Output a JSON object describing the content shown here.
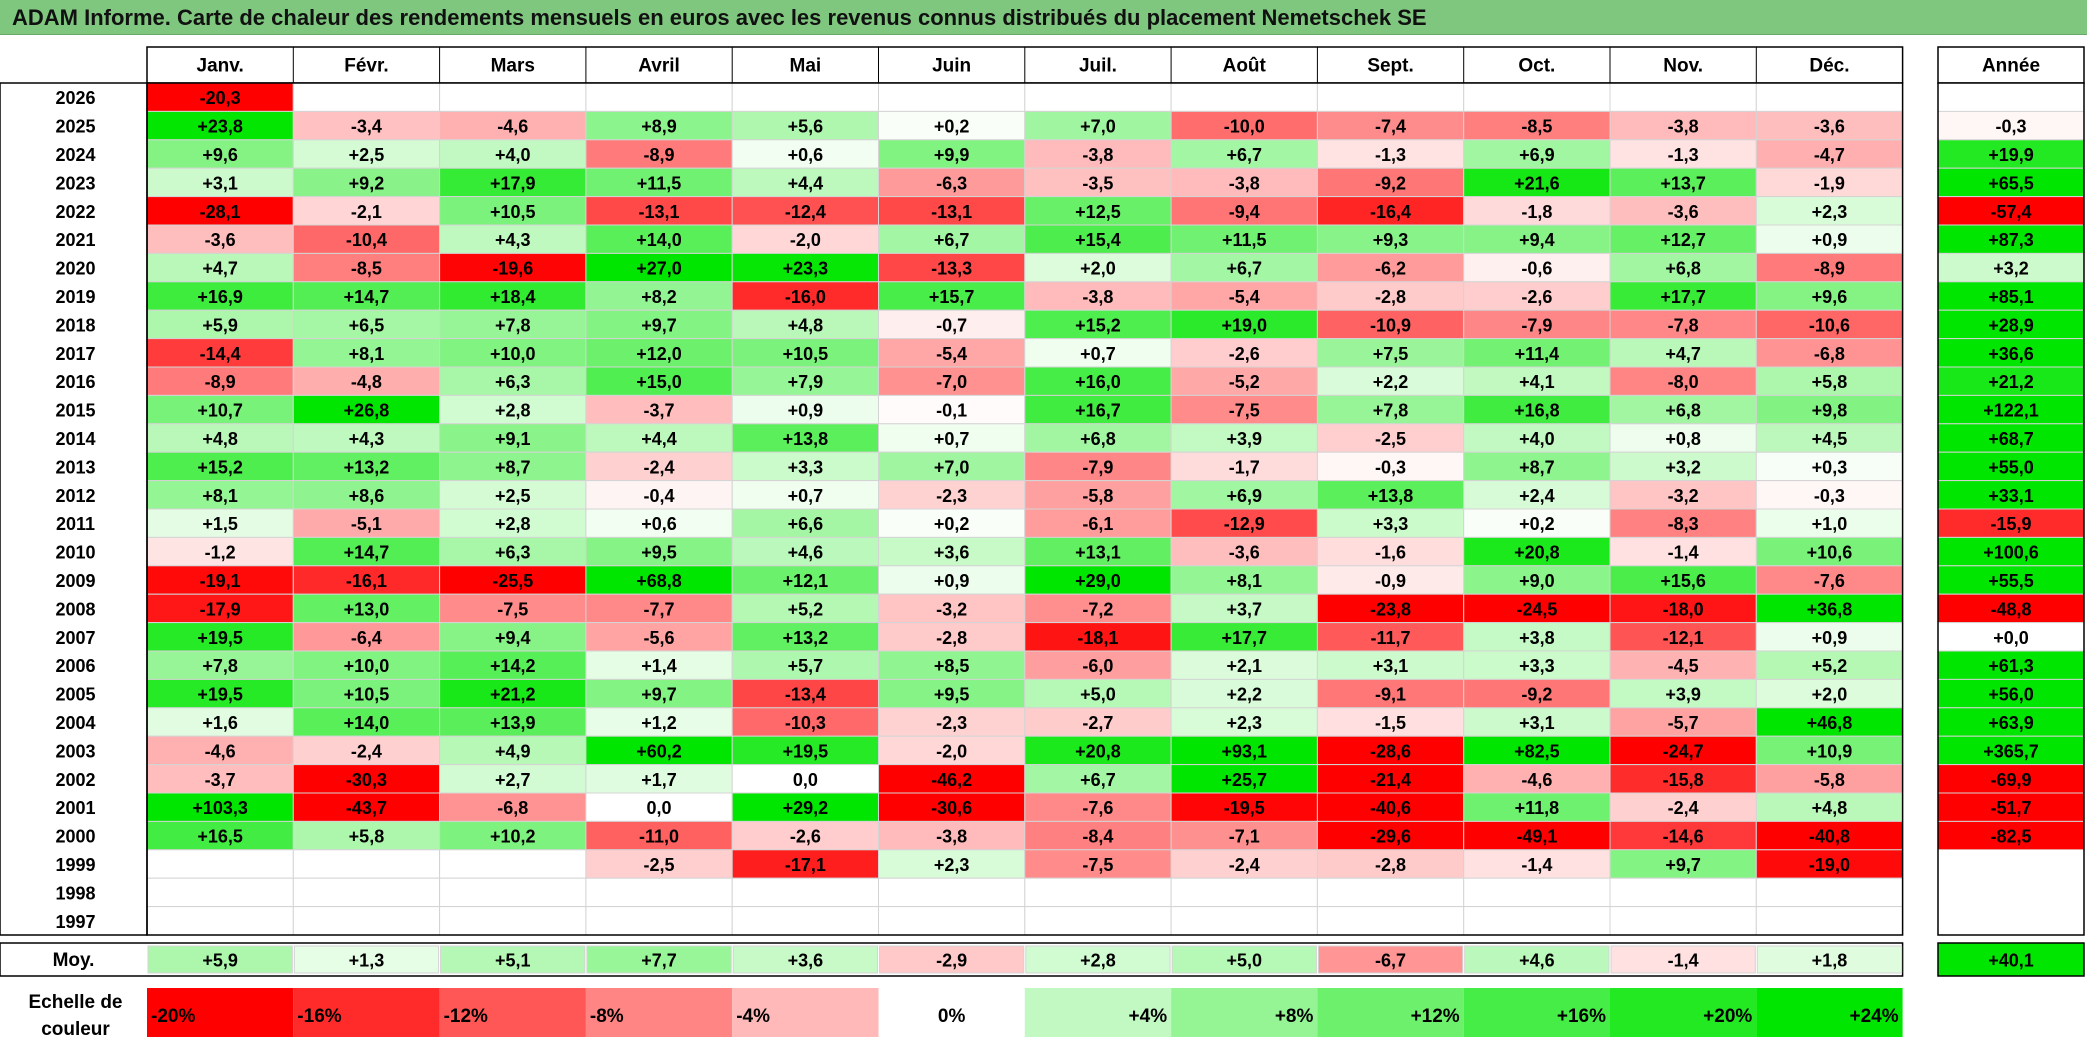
{
  "title": "ADAM Informe. Carte de chaleur des rendements mensuels en euros avec les revenus connus distribués du placement Nemetschek SE",
  "chart_data": {
    "type": "heatmap",
    "months": [
      "Janv.",
      "Févr.",
      "Mars",
      "Avril",
      "Mai",
      "Juin",
      "Juil.",
      "Août",
      "Sept.",
      "Oct.",
      "Nov.",
      "Déc."
    ],
    "year_header": "Année",
    "rows": [
      {
        "year": "2026",
        "months": [
          "-20,3",
          "",
          "",
          "",
          "",
          "",
          "",
          "",
          "",
          "",
          "",
          ""
        ],
        "annual": ""
      },
      {
        "year": "2025",
        "months": [
          "+23,8",
          "-3,4",
          "-4,6",
          "+8,9",
          "+5,6",
          "+0,2",
          "+7,0",
          "-10,0",
          "-7,4",
          "-8,5",
          "-3,8",
          "-3,6"
        ],
        "annual": "-0,3"
      },
      {
        "year": "2024",
        "months": [
          "+9,6",
          "+2,5",
          "+4,0",
          "-8,9",
          "+0,6",
          "+9,9",
          "-3,8",
          "+6,7",
          "-1,3",
          "+6,9",
          "-1,3",
          "-4,7"
        ],
        "annual": "+19,9"
      },
      {
        "year": "2023",
        "months": [
          "+3,1",
          "+9,2",
          "+17,9",
          "+11,5",
          "+4,4",
          "-6,3",
          "-3,5",
          "-3,8",
          "-9,2",
          "+21,6",
          "+13,7",
          "-1,9"
        ],
        "annual": "+65,5"
      },
      {
        "year": "2022",
        "months": [
          "-28,1",
          "-2,1",
          "+10,5",
          "-13,1",
          "-12,4",
          "-13,1",
          "+12,5",
          "-9,4",
          "-16,4",
          "-1,8",
          "-3,6",
          "+2,3"
        ],
        "annual": "-57,4"
      },
      {
        "year": "2021",
        "months": [
          "-3,6",
          "-10,4",
          "+4,3",
          "+14,0",
          "-2,0",
          "+6,7",
          "+15,4",
          "+11,5",
          "+9,3",
          "+9,4",
          "+12,7",
          "+0,9"
        ],
        "annual": "+87,3"
      },
      {
        "year": "2020",
        "months": [
          "+4,7",
          "-8,5",
          "-19,6",
          "+27,0",
          "+23,3",
          "-13,3",
          "+2,0",
          "+6,7",
          "-6,2",
          "-0,6",
          "+6,8",
          "-8,9"
        ],
        "annual": "+3,2"
      },
      {
        "year": "2019",
        "months": [
          "+16,9",
          "+14,7",
          "+18,4",
          "+8,2",
          "-16,0",
          "+15,7",
          "-3,8",
          "-5,4",
          "-2,8",
          "-2,6",
          "+17,7",
          "+9,6"
        ],
        "annual": "+85,1"
      },
      {
        "year": "2018",
        "months": [
          "+5,9",
          "+6,5",
          "+7,8",
          "+9,7",
          "+4,8",
          "-0,7",
          "+15,2",
          "+19,0",
          "-10,9",
          "-7,9",
          "-7,8",
          "-10,6"
        ],
        "annual": "+28,9"
      },
      {
        "year": "2017",
        "months": [
          "-14,4",
          "+8,1",
          "+10,0",
          "+12,0",
          "+10,5",
          "-5,4",
          "+0,7",
          "-2,6",
          "+7,5",
          "+11,4",
          "+4,7",
          "-6,8"
        ],
        "annual": "+36,6"
      },
      {
        "year": "2016",
        "months": [
          "-8,9",
          "-4,8",
          "+6,3",
          "+15,0",
          "+7,9",
          "-7,0",
          "+16,0",
          "-5,2",
          "+2,2",
          "+4,1",
          "-8,0",
          "+5,8"
        ],
        "annual": "+21,2"
      },
      {
        "year": "2015",
        "months": [
          "+10,7",
          "+26,8",
          "+2,8",
          "-3,7",
          "+0,9",
          "-0,1",
          "+16,7",
          "-7,5",
          "+7,8",
          "+16,8",
          "+6,8",
          "+9,8"
        ],
        "annual": "+122,1"
      },
      {
        "year": "2014",
        "months": [
          "+4,8",
          "+4,3",
          "+9,1",
          "+4,4",
          "+13,8",
          "+0,7",
          "+6,8",
          "+3,9",
          "-2,5",
          "+4,0",
          "+0,8",
          "+4,5"
        ],
        "annual": "+68,7"
      },
      {
        "year": "2013",
        "months": [
          "+15,2",
          "+13,2",
          "+8,7",
          "-2,4",
          "+3,3",
          "+7,0",
          "-7,9",
          "-1,7",
          "-0,3",
          "+8,7",
          "+3,2",
          "+0,3"
        ],
        "annual": "+55,0"
      },
      {
        "year": "2012",
        "months": [
          "+8,1",
          "+8,6",
          "+2,5",
          "-0,4",
          "+0,7",
          "-2,3",
          "-5,8",
          "+6,9",
          "+13,8",
          "+2,4",
          "-3,2",
          "-0,3"
        ],
        "annual": "+33,1"
      },
      {
        "year": "2011",
        "months": [
          "+1,5",
          "-5,1",
          "+2,8",
          "+0,6",
          "+6,6",
          "+0,2",
          "-6,1",
          "-12,9",
          "+3,3",
          "+0,2",
          "-8,3",
          "+1,0"
        ],
        "annual": "-15,9"
      },
      {
        "year": "2010",
        "months": [
          "-1,2",
          "+14,7",
          "+6,3",
          "+9,5",
          "+4,6",
          "+3,6",
          "+13,1",
          "-3,6",
          "-1,6",
          "+20,8",
          "-1,4",
          "+10,6"
        ],
        "annual": "+100,6"
      },
      {
        "year": "2009",
        "months": [
          "-19,1",
          "-16,1",
          "-25,5",
          "+68,8",
          "+12,1",
          "+0,9",
          "+29,0",
          "+8,1",
          "-0,9",
          "+9,0",
          "+15,6",
          "-7,6"
        ],
        "annual": "+55,5"
      },
      {
        "year": "2008",
        "months": [
          "-17,9",
          "+13,0",
          "-7,5",
          "-7,7",
          "+5,2",
          "-3,2",
          "-7,2",
          "+3,7",
          "-23,8",
          "-24,5",
          "-18,0",
          "+36,8"
        ],
        "annual": "-48,8"
      },
      {
        "year": "2007",
        "months": [
          "+19,5",
          "-6,4",
          "+9,4",
          "-5,6",
          "+13,2",
          "-2,8",
          "-18,1",
          "+17,7",
          "-11,7",
          "+3,8",
          "-12,1",
          "+0,9"
        ],
        "annual": "+0,0"
      },
      {
        "year": "2006",
        "months": [
          "+7,8",
          "+10,0",
          "+14,2",
          "+1,4",
          "+5,7",
          "+8,5",
          "-6,0",
          "+2,1",
          "+3,1",
          "+3,3",
          "-4,5",
          "+5,2"
        ],
        "annual": "+61,3"
      },
      {
        "year": "2005",
        "months": [
          "+19,5",
          "+10,5",
          "+21,2",
          "+9,7",
          "-13,4",
          "+9,5",
          "+5,0",
          "+2,2",
          "-9,1",
          "-9,2",
          "+3,9",
          "+2,0"
        ],
        "annual": "+56,0"
      },
      {
        "year": "2004",
        "months": [
          "+1,6",
          "+14,0",
          "+13,9",
          "+1,2",
          "-10,3",
          "-2,3",
          "-2,7",
          "+2,3",
          "-1,5",
          "+3,1",
          "-5,7",
          "+46,8"
        ],
        "annual": "+63,9"
      },
      {
        "year": "2003",
        "months": [
          "-4,6",
          "-2,4",
          "+4,9",
          "+60,2",
          "+19,5",
          "-2,0",
          "+20,8",
          "+93,1",
          "-28,6",
          "+82,5",
          "-24,7",
          "+10,9"
        ],
        "annual": "+365,7"
      },
      {
        "year": "2002",
        "months": [
          "-3,7",
          "-30,3",
          "+2,7",
          "+1,7",
          "0,0",
          "-46,2",
          "+6,7",
          "+25,7",
          "-21,4",
          "-4,6",
          "-15,8",
          "-5,8"
        ],
        "annual": "-69,9"
      },
      {
        "year": "2001",
        "months": [
          "+103,3",
          "-43,7",
          "-6,8",
          "0,0",
          "+29,2",
          "-30,6",
          "-7,6",
          "-19,5",
          "-40,6",
          "+11,8",
          "-2,4",
          "+4,8"
        ],
        "annual": "-51,7"
      },
      {
        "year": "2000",
        "months": [
          "+16,5",
          "+5,8",
          "+10,2",
          "-11,0",
          "-2,6",
          "-3,8",
          "-8,4",
          "-7,1",
          "-29,6",
          "-49,1",
          "-14,6",
          "-40,8"
        ],
        "annual": "-82,5"
      },
      {
        "year": "1999",
        "months": [
          "",
          "",
          "",
          "-2,5",
          "-17,1",
          "+2,3",
          "-7,5",
          "-2,4",
          "-2,8",
          "-1,4",
          "+9,7",
          "-19,0"
        ],
        "annual": ""
      },
      {
        "year": "1998",
        "months": [
          "",
          "",
          "",
          "",
          "",
          "",
          "",
          "",
          "",
          "",
          "",
          ""
        ],
        "annual": ""
      },
      {
        "year": "1997",
        "months": [
          "",
          "",
          "",
          "",
          "",
          "",
          "",
          "",
          "",
          "",
          "",
          ""
        ],
        "annual": ""
      }
    ],
    "average": {
      "label": "Moy.",
      "months": [
        "+5,9",
        "+1,3",
        "+5,1",
        "+7,7",
        "+3,6",
        "-2,9",
        "+2,8",
        "+5,0",
        "-6,7",
        "+4,6",
        "-1,4",
        "+1,8"
      ],
      "annual": "+40,1"
    },
    "scale": {
      "label": "Echelle de couleur",
      "steps": [
        "-20%",
        "-16%",
        "-12%",
        "-8%",
        "-4%",
        "0%",
        "+4%",
        "+8%",
        "+12%",
        "+16%",
        "+20%",
        "+24%"
      ]
    },
    "colors": {
      "negative_full": "#ff0000",
      "neutral": "#ffffff",
      "positive_full": "#00e600",
      "title_bar": "#7fc77f"
    }
  }
}
